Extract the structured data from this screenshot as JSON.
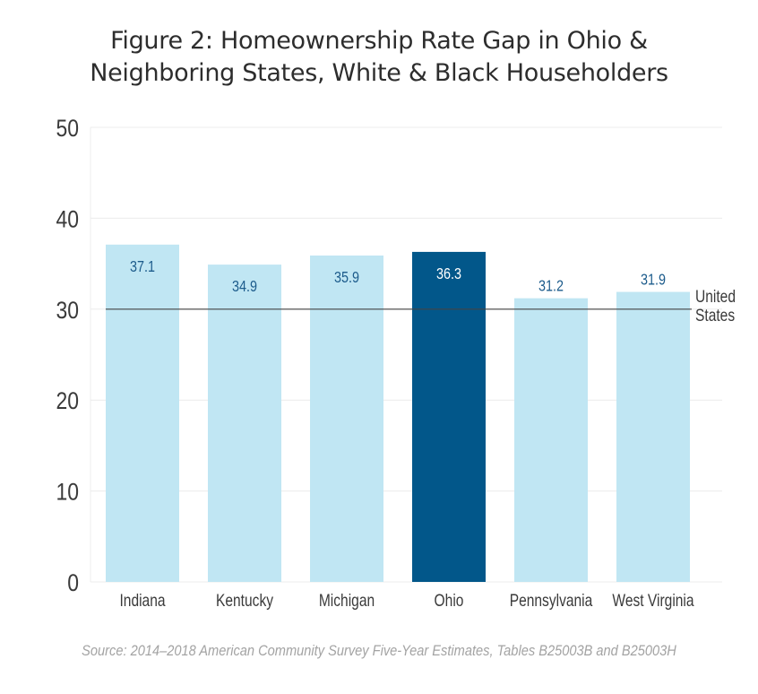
{
  "chart_data": {
    "type": "bar",
    "title": "Figure 2: Homeownership Rate Gap in Ohio & Neighboring States, White & Black Householders",
    "title_lines": [
      "Figure 2: Homeownership Rate Gap in Ohio &",
      "Neighboring States, White & Black Householders"
    ],
    "xlabel": "",
    "ylabel": "",
    "categories": [
      "Indiana",
      "Kentucky",
      "Michigan",
      "Ohio",
      "Pennsylvania",
      "West Virginia"
    ],
    "values": [
      37.1,
      34.9,
      35.9,
      36.3,
      31.2,
      31.9
    ],
    "value_labels": [
      "37.1",
      "34.9",
      "35.9",
      "36.3",
      "31.2",
      "31.9"
    ],
    "highlight": "Ohio",
    "ylim": [
      0,
      50
    ],
    "yticks": [
      0,
      10,
      20,
      30,
      40,
      50
    ],
    "grid": true,
    "reference_line": {
      "label_lines": [
        "United",
        "States"
      ],
      "value": 30
    },
    "colors": {
      "bar": "#c0e6f3",
      "highlight": "#02578a",
      "label": "#1d5c8c",
      "highlight_label": "#ffffff",
      "reference": "#444444",
      "grid": "#ececec",
      "axis_text": "#3a3a3a"
    },
    "source": "Source: 2014–2018 American Community Survey Five-Year Estimates, Tables B25003B and B25003H"
  }
}
